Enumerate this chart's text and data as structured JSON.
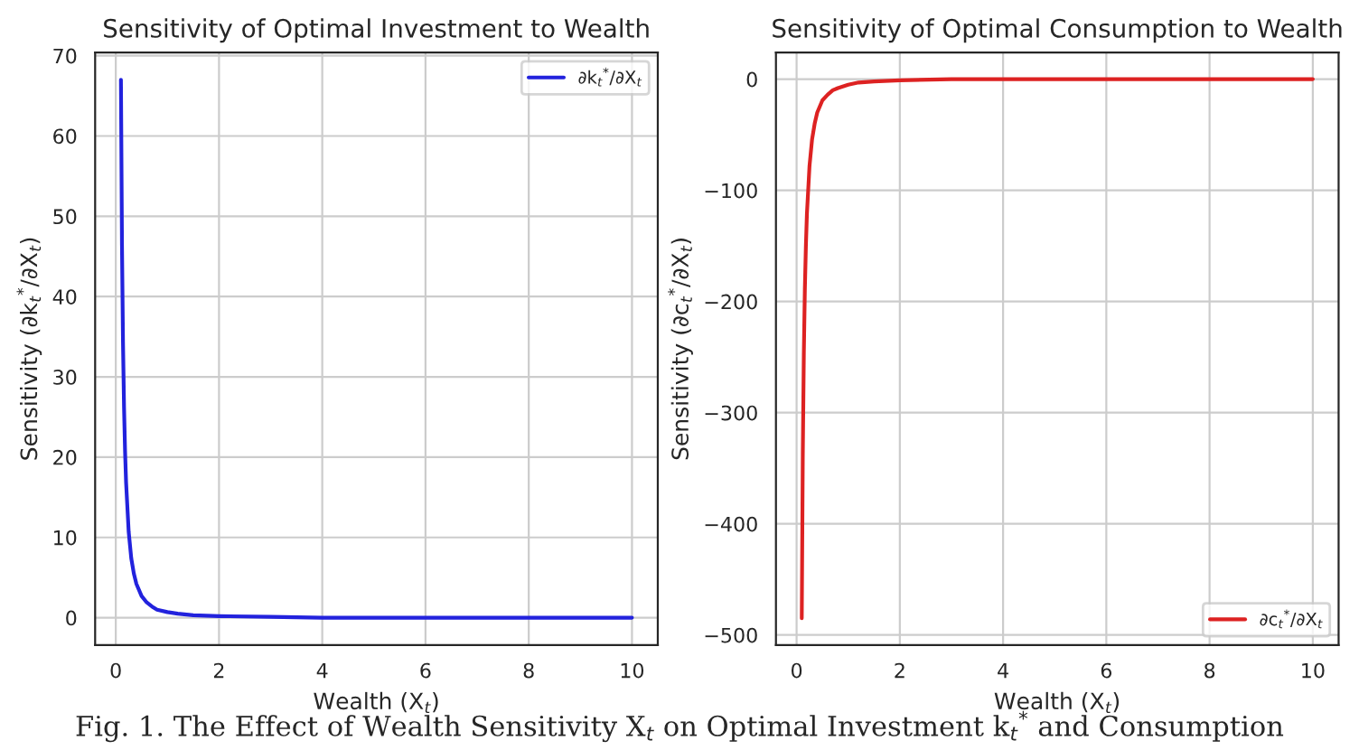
{
  "chart_data": [
    {
      "type": "line",
      "title": "Sensitivity of Optimal Investment to Wealth",
      "xlabel": "Wealth (X$_{t}$)",
      "ylabel": "Sensitivity (∂k$_{t}$$^{*}$/∂X$_{t}$)",
      "x": [
        0.1,
        0.12,
        0.14,
        0.16,
        0.18,
        0.2,
        0.25,
        0.3,
        0.35,
        0.4,
        0.5,
        0.6,
        0.7,
        0.8,
        1,
        1.2,
        1.5,
        2,
        3,
        4,
        6,
        8,
        10
      ],
      "series": [
        {
          "name": "∂k$_{t}$$^{*}$/∂X$_{t}$",
          "color": "#2222dd",
          "values": [
            67,
            46.5,
            34.2,
            26.2,
            20.7,
            16.8,
            10.7,
            7.4,
            5.5,
            4.2,
            2.7,
            1.9,
            1.4,
            1.0,
            0.7,
            0.5,
            0.3,
            0.2,
            0.1,
            0,
            0,
            0,
            0
          ]
        }
      ],
      "xlim": [
        -0.4,
        10.5
      ],
      "ylim": [
        -3.4,
        70.4
      ],
      "xticks": [
        0,
        2,
        4,
        6,
        8,
        10
      ],
      "yticks": [
        0,
        10,
        20,
        30,
        40,
        50,
        60,
        70
      ],
      "grid": true,
      "legend": "top right"
    },
    {
      "type": "line",
      "title": "Sensitivity of Optimal Consumption to Wealth",
      "xlabel": "Wealth (X$_{t}$)",
      "ylabel": "Sensitivity (∂c$_{t}$$^{*}$/∂X$_{t}$)",
      "x": [
        0.1,
        0.12,
        0.14,
        0.16,
        0.18,
        0.2,
        0.25,
        0.3,
        0.35,
        0.4,
        0.5,
        0.6,
        0.7,
        0.8,
        1,
        1.2,
        1.5,
        2,
        3,
        4,
        6,
        8,
        10
      ],
      "series": [
        {
          "name": "∂c$_{t}$$^{*}$/∂X$_{t}$",
          "color": "#dd2222",
          "values": [
            -485,
            -337,
            -247,
            -189,
            -150,
            -121,
            -78,
            -54,
            -40,
            -30,
            -19,
            -14,
            -10,
            -8,
            -5,
            -3,
            -2,
            -1,
            0,
            0,
            0,
            0,
            0
          ]
        }
      ],
      "xlim": [
        -0.4,
        10.5
      ],
      "ylim": [
        -509,
        24
      ],
      "xticks": [
        0,
        2,
        4,
        6,
        8,
        10
      ],
      "yticks": [
        -500,
        -400,
        -300,
        -200,
        -100,
        0
      ],
      "grid": true,
      "legend": "bottom right",
      "annotations": [
        "Fig. 1. The Effect of Wealth Sensitivity X$_{t}$ on Optimal Investment k$_{t}$$^{*}$ and Consumption"
      ]
    }
  ]
}
